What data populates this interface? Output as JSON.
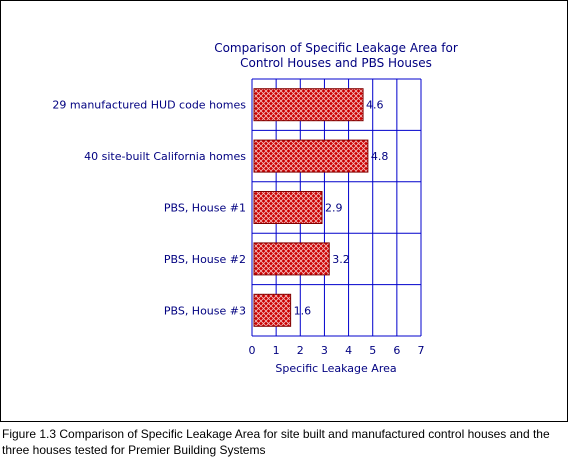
{
  "chart_data": {
    "type": "bar",
    "orientation": "horizontal",
    "title": [
      "Comparison of Specific Leakage Area for",
      "Control Houses and PBS Houses"
    ],
    "categories": [
      "29  manufactured HUD code homes",
      "40  site-built California homes",
      "PBS,  House #1",
      "PBS,  House #2",
      "PBS,  House #3"
    ],
    "values": [
      4.6,
      4.8,
      2.9,
      3.2,
      1.6
    ],
    "data_labels": [
      "4.6",
      "4.8",
      "2.9",
      "3.2",
      "1.6"
    ],
    "xlabel": "Specific Leakage Area",
    "xlim": [
      0,
      7
    ],
    "xticks": [
      "0",
      "1",
      "2",
      "3",
      "4",
      "5",
      "6",
      "7"
    ],
    "grid": true,
    "colors": {
      "text": "#000080",
      "grid": "#0000cc",
      "bar_fill": "#cc0000",
      "bar_pattern": "#ffffff"
    }
  },
  "caption": "Figure 1.3  Comparison of Specific Leakage Area for site built and manufactured control houses and the three houses tested for Premier Building Systems"
}
